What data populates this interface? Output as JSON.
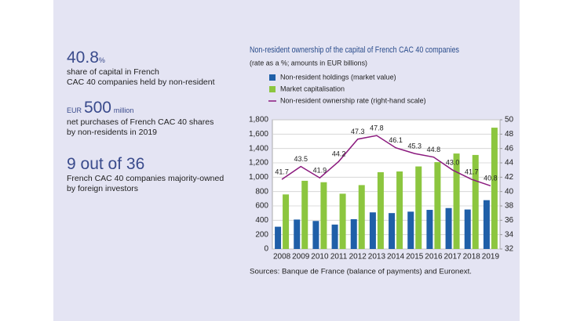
{
  "stats": [
    {
      "value": "40.8",
      "unit": "%",
      "lines": [
        "share of capital in French",
        "CAC 40 companies held by non-resident"
      ]
    },
    {
      "prefix": "EUR",
      "value": "500",
      "unit": "million",
      "lines": [
        "net purchases of French CAC 40 shares",
        "by non-residents in 2019"
      ]
    },
    {
      "value": "9 out of 36",
      "lines": [
        "French CAC 40 companies majority-owned",
        "by foreign investors"
      ]
    }
  ],
  "chart_data": {
    "type": "bar",
    "title": "Non-resident ownership of the capital of French CAC 40 companies",
    "subtitle": "(rate as a %; amounts in EUR billions)",
    "categories": [
      "2008",
      "2009",
      "2010",
      "2011",
      "2012",
      "2013",
      "2014",
      "2015",
      "2016",
      "2017",
      "2018",
      "2019"
    ],
    "series": [
      {
        "name": "Non-resident holdings (market value)",
        "color": "#1f5fa8",
        "values": [
          310,
          410,
          390,
          340,
          415,
          510,
          500,
          520,
          545,
          570,
          550,
          680
        ]
      },
      {
        "name": "Market capitalisation",
        "color": "#8cc63f",
        "values": [
          760,
          950,
          930,
          770,
          890,
          1070,
          1080,
          1150,
          1210,
          1330,
          1310,
          1690
        ]
      },
      {
        "name": "Non-resident ownership rate (right-hand scale)",
        "type": "line",
        "axis": "y2",
        "color": "#8b1a7e",
        "values": [
          41.7,
          43.5,
          41.9,
          44.2,
          47.3,
          47.8,
          46.1,
          45.3,
          44.8,
          43.0,
          41.7,
          40.8
        ],
        "value_labels": [
          "41.7",
          "43.5",
          "41.9",
          "44.2",
          "47.3",
          "47.8",
          "46.1",
          "45.3",
          "44.8",
          "43.0",
          "41.7",
          "40.8"
        ]
      }
    ],
    "ylim": [
      0,
      1800
    ],
    "yticks": [
      0,
      200,
      400,
      600,
      800,
      {
        "value": 1000,
        "label": "1,000"
      },
      {
        "value": 1200,
        "label": "1,200"
      },
      {
        "value": 1400,
        "label": "1,400"
      },
      {
        "value": 1600,
        "label": "1,600"
      },
      {
        "value": 1800,
        "label": "1,800"
      }
    ],
    "y2lim": [
      32,
      50
    ],
    "y2ticks": [
      32,
      34,
      36,
      38,
      40,
      42,
      44,
      46,
      48,
      50
    ],
    "grid": true,
    "source": "Sources: Banque de France (balance of payments) and Euronext."
  }
}
